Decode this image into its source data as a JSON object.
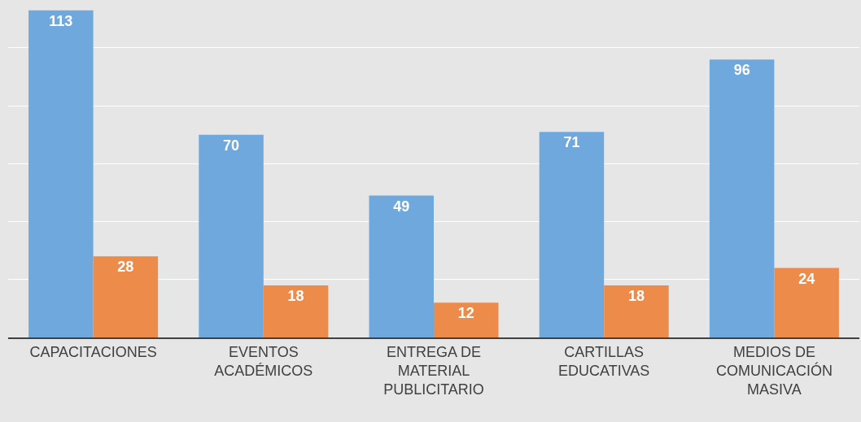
{
  "chart_data": {
    "type": "bar",
    "categories": [
      "CAPACITACIONES",
      "EVENTOS ACADÉMICOS",
      "ENTREGA DE MATERIAL PUBLICITARIO",
      "CARTILLAS EDUCATIVAS",
      "MEDIOS DE COMUNICACIÓN MASIVA"
    ],
    "series": [
      {
        "color": "#6fa8dc",
        "values": [
          113,
          70,
          49,
          71,
          96
        ]
      },
      {
        "color": "#ed8b4a",
        "values": [
          28,
          18,
          12,
          18,
          24
        ]
      }
    ],
    "ylim": [
      0,
      116
    ],
    "yticks": [
      {
        "value": 0,
        "label": null
      },
      {
        "value": 20,
        "label": null
      },
      {
        "value": 40,
        "label": null
      },
      {
        "value": 60,
        "label": null
      },
      {
        "value": 80,
        "label": null
      },
      {
        "value": 100,
        "label": null
      }
    ],
    "grid": "y",
    "data_labels": true,
    "tick_labels": "x"
  }
}
